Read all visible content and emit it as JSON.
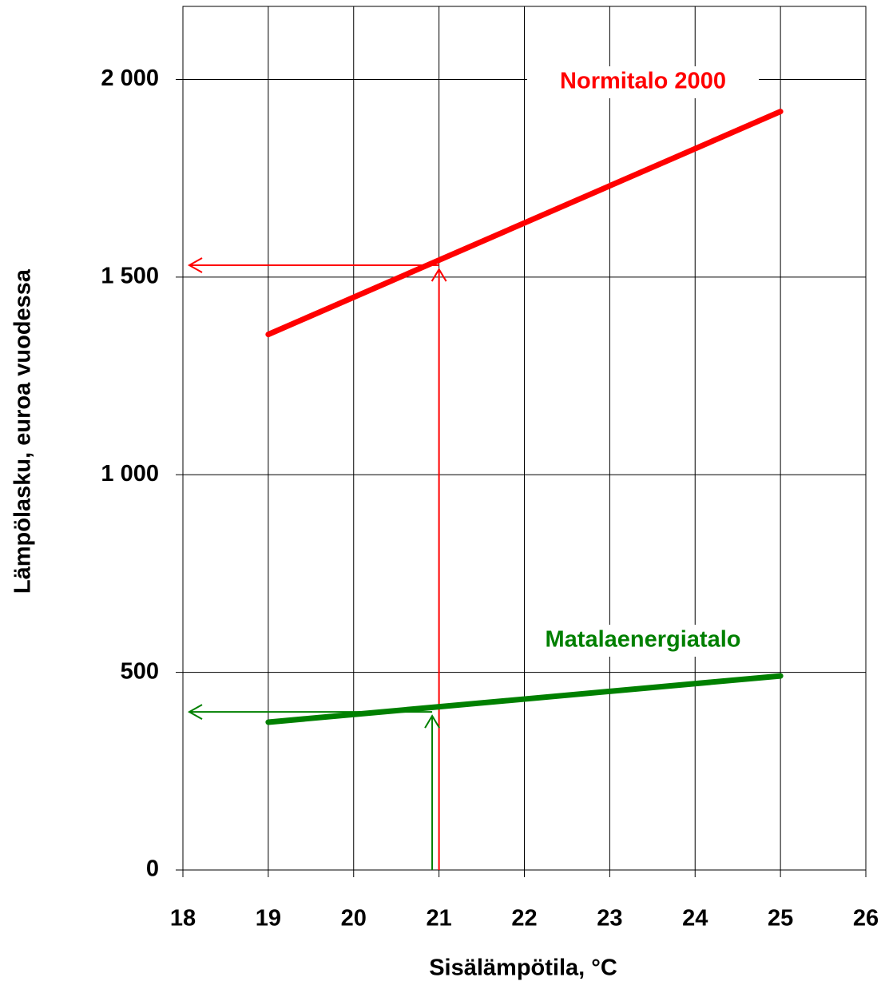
{
  "chart_data": {
    "type": "line",
    "xlabel": "Sisälämpötila, °C",
    "ylabel": "Lämpölasku, euroa vuodessa",
    "xlim": [
      18,
      26
    ],
    "xticks": [
      18,
      19,
      20,
      21,
      22,
      23,
      24,
      25,
      26
    ],
    "ylim": [
      0,
      2185
    ],
    "yticks": [
      0,
      {
        "value": 500,
        "label": "500"
      },
      {
        "value": 1000,
        "label": "1 000"
      },
      {
        "value": 1500,
        "label": "1 500"
      },
      {
        "value": 2000,
        "label": "2 000"
      }
    ],
    "grid": true,
    "series": [
      {
        "name": "Normitalo 2000",
        "color": "#ff0000",
        "x": [
          19,
          25
        ],
        "values": [
          1355,
          1919
        ]
      },
      {
        "name": "Matalaenergiatalo",
        "color": "#008000",
        "x": [
          19,
          25
        ],
        "values": [
          374,
          491
        ]
      }
    ],
    "guides": [
      {
        "color": "#ff0000",
        "x": 21,
        "y": 1530
      },
      {
        "color": "#008000",
        "x": 20.92,
        "y": 400
      }
    ]
  }
}
